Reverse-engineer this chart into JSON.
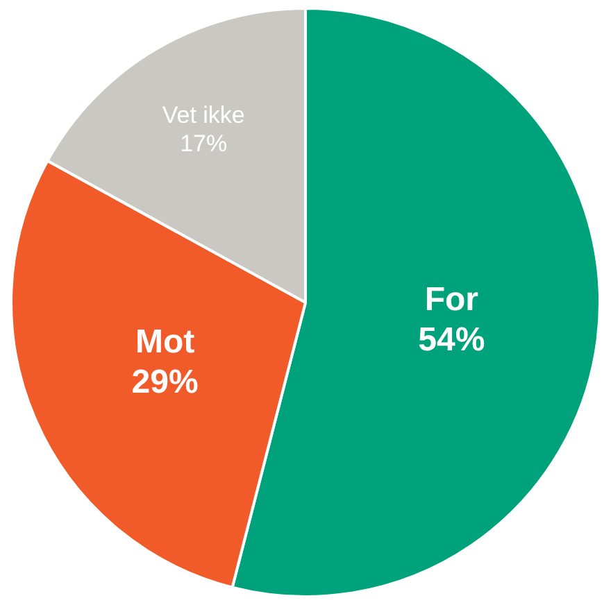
{
  "chart_data": {
    "type": "pie",
    "categories": [
      "For",
      "Mot",
      "Vet ikke"
    ],
    "values": [
      54,
      29,
      17
    ],
    "colors": [
      "#00a27b",
      "#f15a29",
      "#c9c8c3"
    ],
    "value_labels": [
      "54%",
      "29%",
      "17%"
    ],
    "legend": false
  }
}
